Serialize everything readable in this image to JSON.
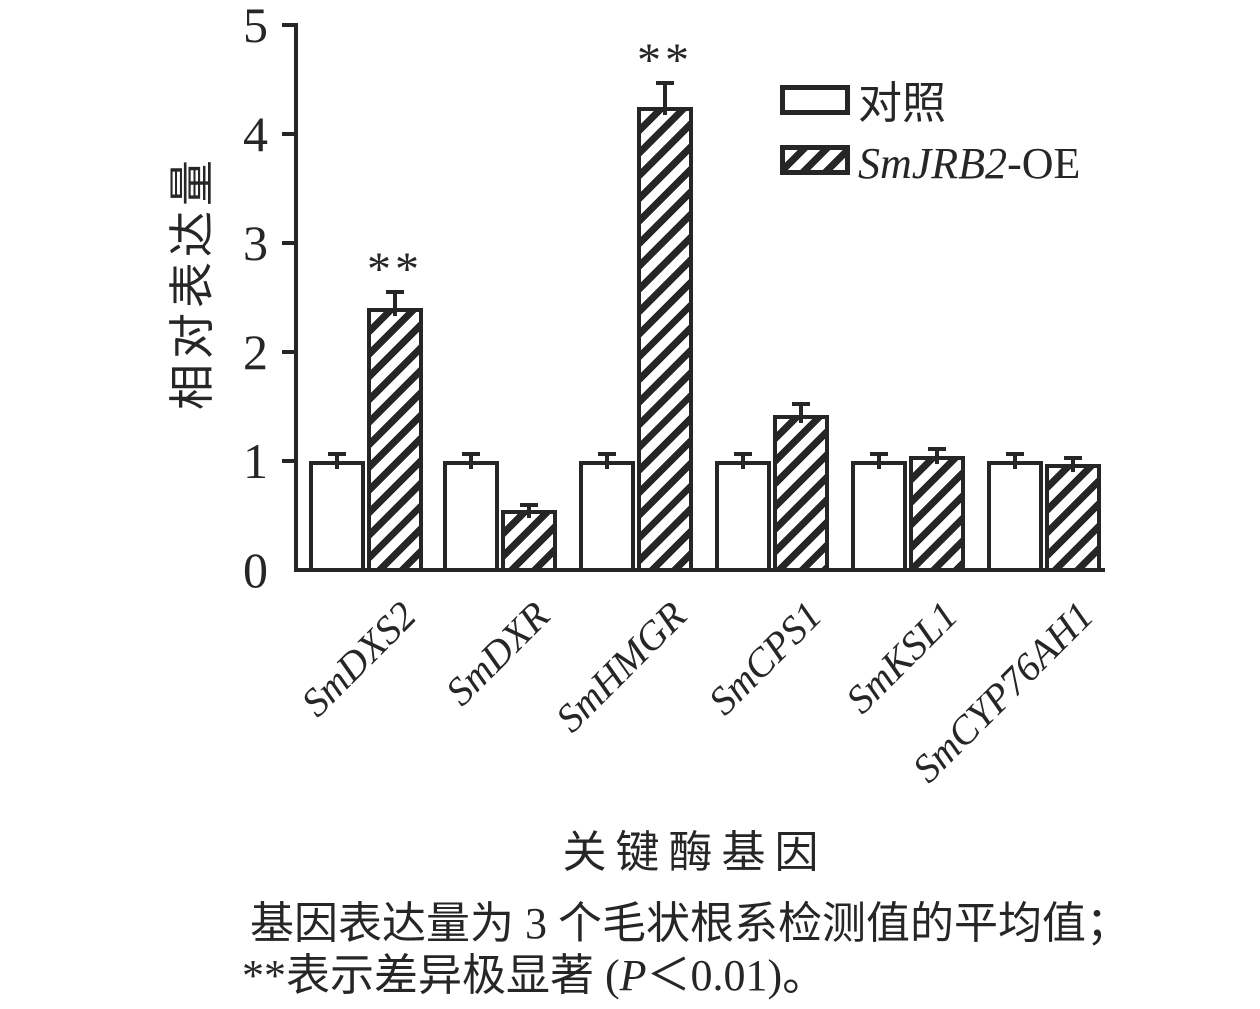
{
  "colors": {
    "ink": "#262626",
    "background": "#ffffff"
  },
  "chart_data": {
    "type": "bar",
    "title": "",
    "categories": [
      "SmDXS2",
      "SmDXR",
      "SmHMGR",
      "SmCPS1",
      "SmKSL1",
      "SmCYP76AH1"
    ],
    "series": [
      {
        "name": "对照",
        "style": "open",
        "values": [
          1.0,
          1.0,
          1.0,
          1.0,
          1.0,
          1.0
        ],
        "errors": [
          0.05,
          0.05,
          0.05,
          0.05,
          0.05,
          0.05
        ]
      },
      {
        "name": "SmJRB2-OE",
        "style": "hatched-diagonal",
        "values": [
          2.4,
          0.55,
          4.25,
          1.42,
          1.05,
          0.97
        ],
        "errors": [
          0.13,
          0.03,
          0.2,
          0.08,
          0.05,
          0.04
        ]
      }
    ],
    "significance": [
      {
        "category": "SmDXS2",
        "series": "SmJRB2-OE",
        "marker": "**"
      },
      {
        "category": "SmHMGR",
        "series": "SmJRB2-OE",
        "marker": "**"
      }
    ],
    "ylabel": "相对表达量",
    "xlabel": "关键酶基因",
    "ylim": [
      0,
      5
    ],
    "yticks": [
      0,
      1,
      2,
      3,
      4,
      5
    ],
    "grid": false,
    "legend_position": "upper-right"
  },
  "legend": {
    "items": [
      {
        "label": "对照",
        "swatch": "open"
      },
      {
        "label_italic": "SmJRB2",
        "label_regular": "-OE",
        "swatch": "hatched"
      }
    ]
  },
  "caption": {
    "line1": "基因表达量为 3 个毛状根系检测值的平均值；",
    "line2_prefix": "**表示差异极显著 (",
    "line2_italic": "P",
    "line2_suffix": "＜0.01)。"
  }
}
